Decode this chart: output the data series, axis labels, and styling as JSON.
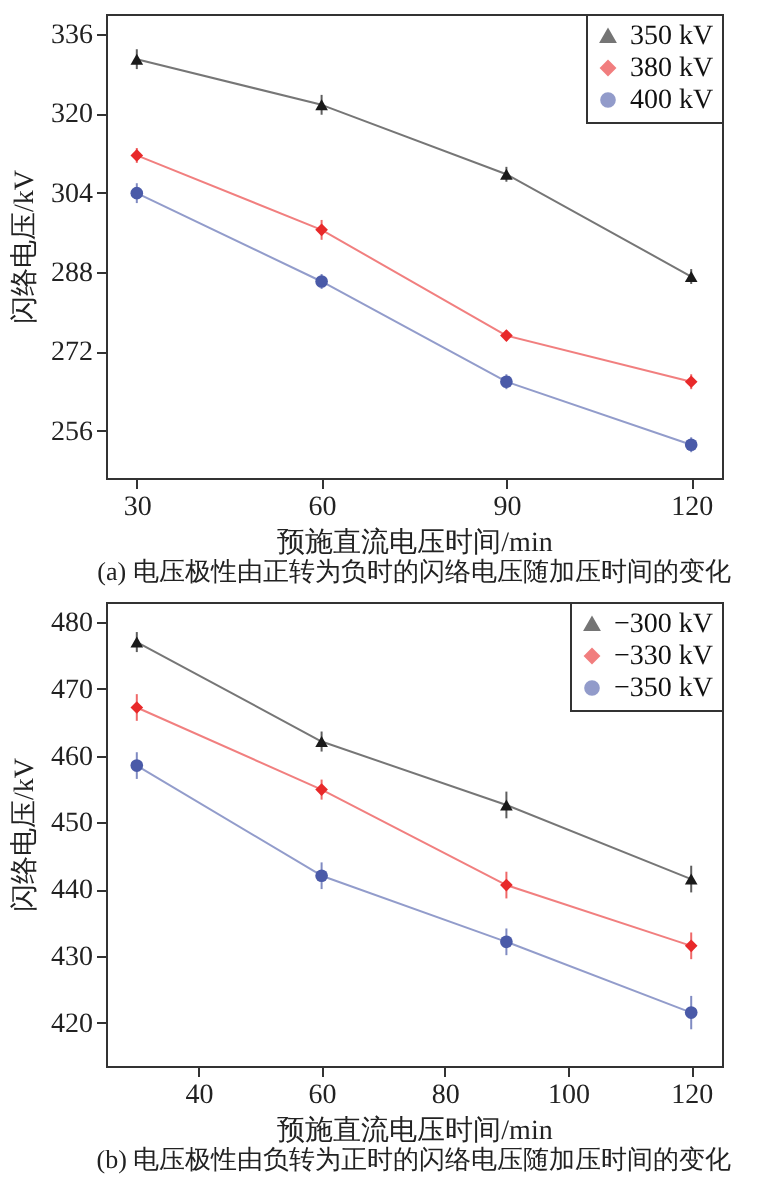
{
  "chart_data": [
    {
      "type": "line",
      "title": "(a) 电压极性由正转为负时的闪络电压随加压时间的变化",
      "xlabel": "预施直流电压时间/min",
      "ylabel": "闪络电压/kV",
      "x": [
        30,
        60,
        90,
        120
      ],
      "xlim": [
        25,
        125
      ],
      "xticks": [
        30,
        60,
        90,
        120
      ],
      "ylim": [
        246.5,
        340
      ],
      "yticks": [
        256,
        272,
        288,
        304,
        320,
        336
      ],
      "legend": "top right",
      "grid": false,
      "series": [
        {
          "name": "350 kV",
          "color": "#1a1a1a",
          "marker": "triangle",
          "values": [
            330.9,
            321.7,
            307.7,
            287.1
          ],
          "errors": [
            2,
            2,
            1.5,
            1.5
          ]
        },
        {
          "name": "380 kV",
          "color": "#e8292a",
          "marker": "diamond",
          "values": [
            311.5,
            296.5,
            275.2,
            265.9
          ],
          "errors": [
            1.5,
            2,
            1,
            1.5
          ]
        },
        {
          "name": "400 kV",
          "color": "#4a5aa8",
          "marker": "circle",
          "values": [
            303.9,
            286.1,
            265.9,
            253.2
          ],
          "errors": [
            2,
            1.5,
            1.5,
            1.5
          ]
        }
      ]
    },
    {
      "type": "line",
      "title": "(b) 电压极性由负转为正时的闪络电压随加压时间的变化",
      "xlabel": "预施直流电压时间/min",
      "ylabel": "闪络电压/kV",
      "x": [
        30,
        60,
        90,
        120
      ],
      "xlim": [
        25,
        125
      ],
      "xticks": [
        40,
        60,
        80,
        100,
        120
      ],
      "ylim": [
        413.5,
        483
      ],
      "yticks": [
        420,
        430,
        440,
        450,
        460,
        470,
        480
      ],
      "legend": "top right",
      "grid": false,
      "series": [
        {
          "name": "−300 kV",
          "color": "#1a1a1a",
          "marker": "triangle",
          "values": [
            477.0,
            462.1,
            452.6,
            441.5
          ],
          "errors": [
            1.5,
            1.5,
            2,
            2
          ]
        },
        {
          "name": "−330 kV",
          "color": "#e8292a",
          "marker": "diamond",
          "values": [
            467.2,
            454.9,
            440.6,
            431.5
          ],
          "errors": [
            2,
            1.5,
            2,
            2
          ]
        },
        {
          "name": "−350 kV",
          "color": "#4a5aa8",
          "marker": "circle",
          "values": [
            458.5,
            442.0,
            432.1,
            421.5
          ],
          "errors": [
            2,
            2,
            2,
            2.5
          ]
        }
      ]
    }
  ]
}
